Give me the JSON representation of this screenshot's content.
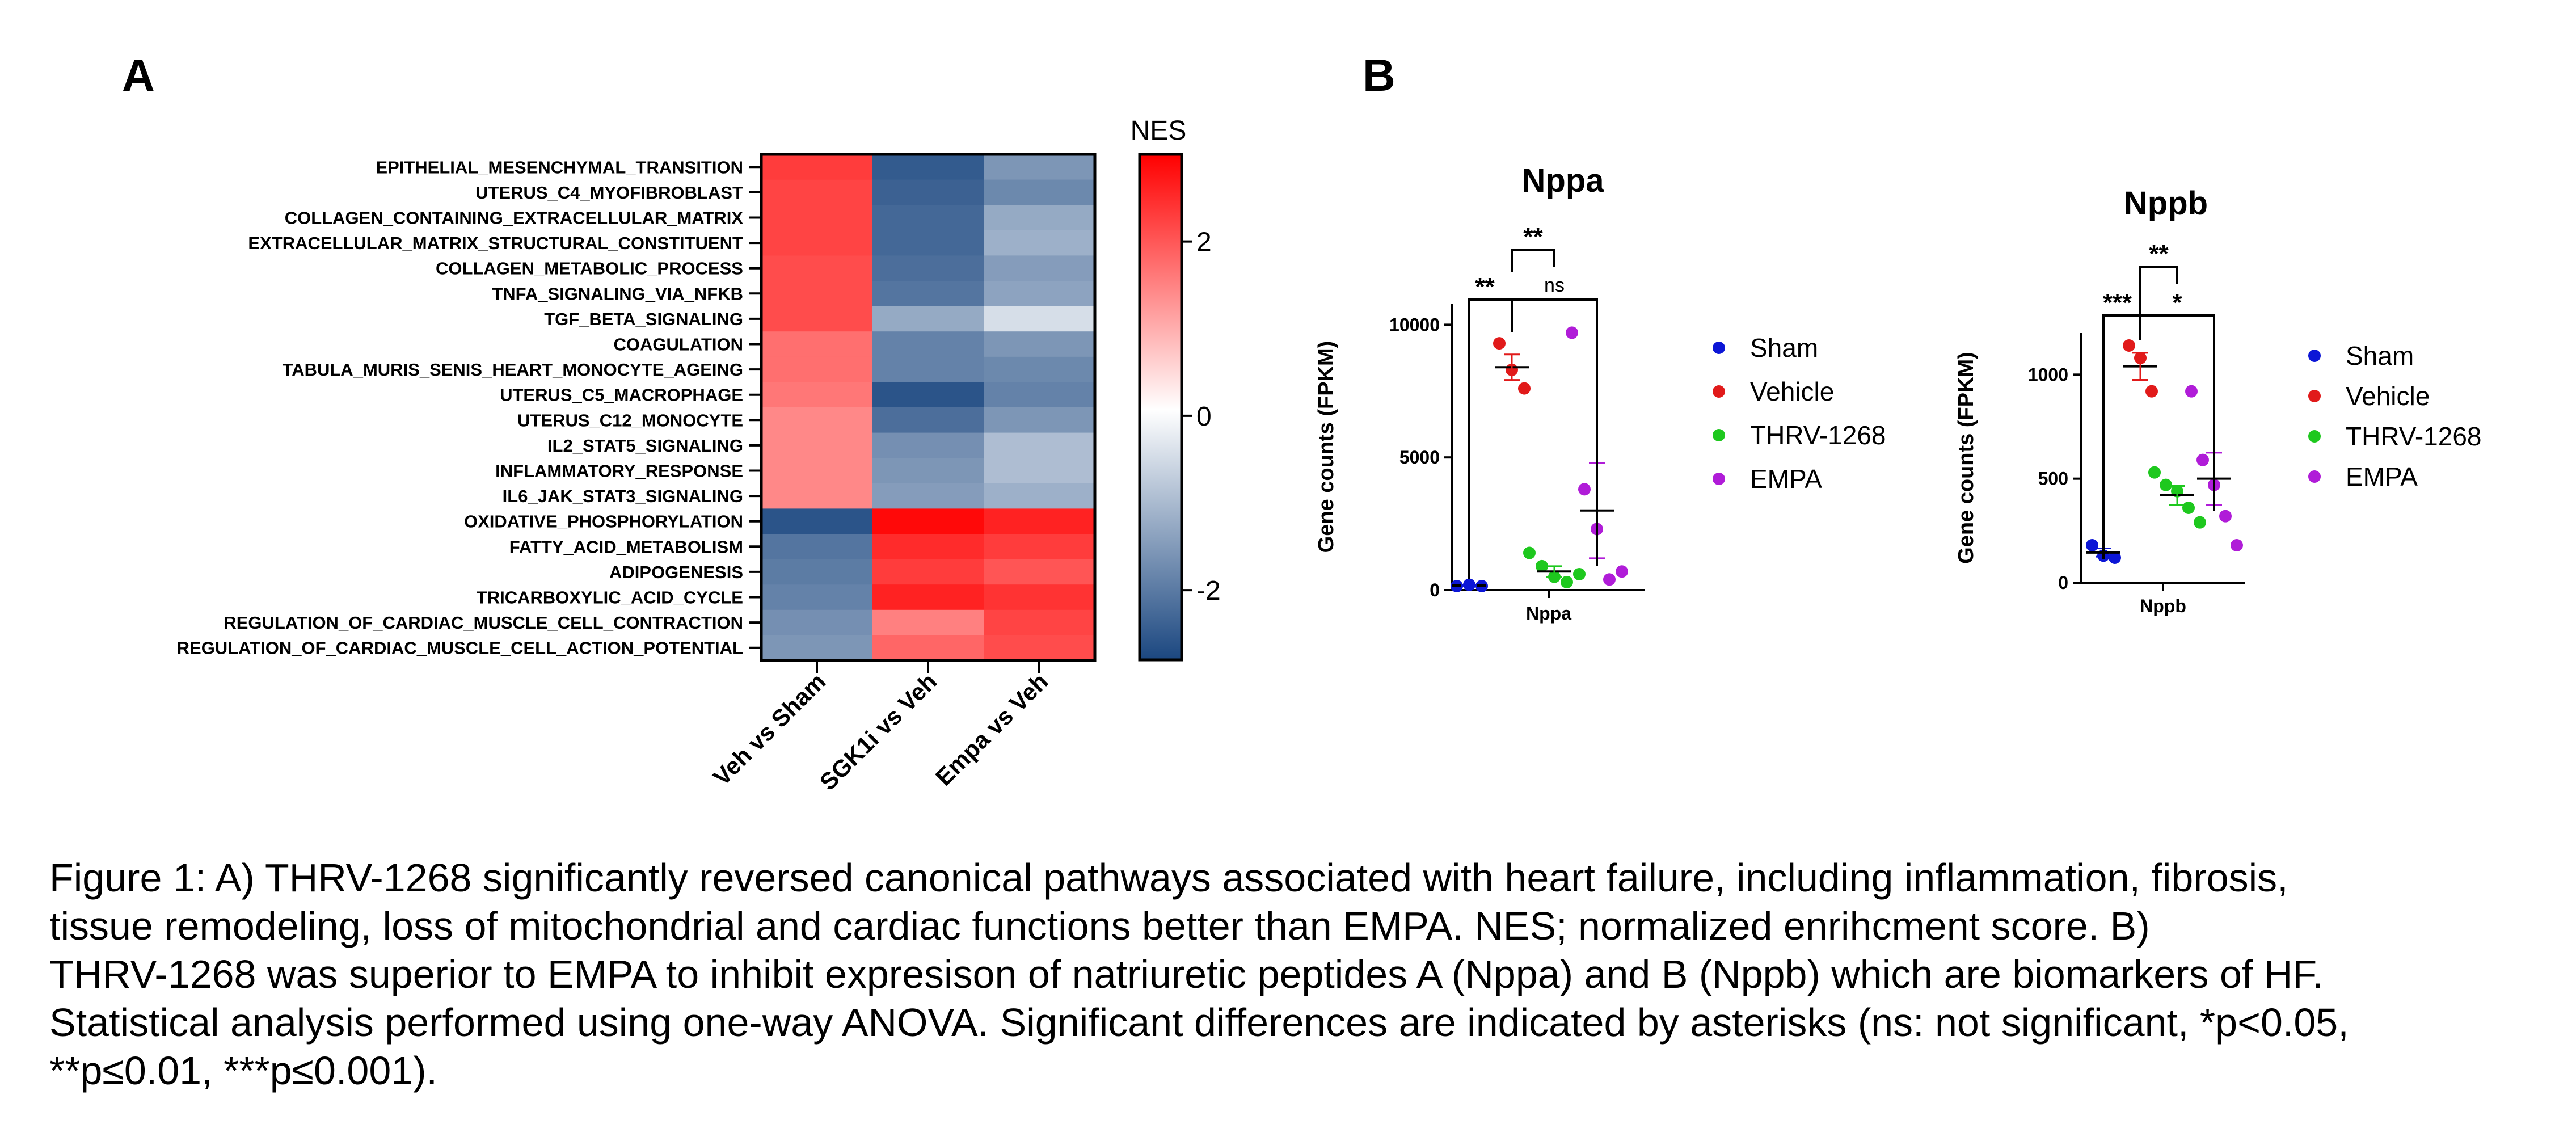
{
  "figure": {
    "panel_a_label": "A",
    "panel_b_label": "B"
  },
  "chart_data": [
    {
      "type": "heatmap",
      "title": "",
      "colorbar_label": "NES",
      "colorbar_ticks": [
        2,
        0,
        -2
      ],
      "zlim": [
        -2.8,
        3.0
      ],
      "colors": {
        "low": "#1b4780",
        "mid": "#ffffff",
        "high": "#ff0000"
      },
      "columns": [
        "Veh vs Sham",
        "SGK1i vs Veh",
        "Empa vs Veh"
      ],
      "rows": [
        "EPITHELIAL_MESENCHYMAL_TRANSITION",
        "UTERUS_C4_MYOFIBROBLAST",
        "COLLAGEN_CONTAINING_EXTRACELLULAR_MATRIX",
        "EXTRACELLULAR_MATRIX_STRUCTURAL_CONSTITUENT",
        "COLLAGEN_METABOLIC_PROCESS",
        "TNFA_SIGNALING_VIA_NFKB",
        "TGF_BETA_SIGNALING",
        "COAGULATION",
        "TABULA_MURIS_SENIS_HEART_MONOCYTE_AGEING",
        "UTERUS_C5_MACROPHAGE",
        "UTERUS_C12_MONOCYTE",
        "IL2_STAT5_SIGNALING",
        "INFLAMMATORY_RESPONSE",
        "IL6_JAK_STAT3_SIGNALING",
        "OXIDATIVE_PHOSPHORYLATION",
        "FATTY_ACID_METABOLISM",
        "ADIPOGENESIS",
        "TRICARBOXYLIC_ACID_CYCLE",
        "REGULATION_OF_CARDIAC_MUSCLE_CELL_CONTRACTION",
        "REGULATION_OF_CARDIAC_MUSCLE_CELL_ACTION_POTENTIAL"
      ],
      "values": [
        [
          2.3,
          -2.5,
          -1.6
        ],
        [
          2.2,
          -2.4,
          -1.8
        ],
        [
          2.2,
          -2.3,
          -1.3
        ],
        [
          2.2,
          -2.3,
          -1.2
        ],
        [
          2.1,
          -2.2,
          -1.5
        ],
        [
          2.1,
          -2.1,
          -1.4
        ],
        [
          2.1,
          -1.3,
          -0.5
        ],
        [
          1.7,
          -1.9,
          -1.6
        ],
        [
          1.7,
          -1.9,
          -1.8
        ],
        [
          1.6,
          -2.6,
          -1.9
        ],
        [
          1.4,
          -2.2,
          -1.6
        ],
        [
          1.4,
          -1.7,
          -1.0
        ],
        [
          1.4,
          -1.6,
          -1.0
        ],
        [
          1.4,
          -1.5,
          -1.2
        ],
        [
          -2.6,
          2.9,
          2.6
        ],
        [
          -2.1,
          2.5,
          2.3
        ],
        [
          -2.0,
          2.3,
          2.0
        ],
        [
          -1.9,
          2.6,
          2.4
        ],
        [
          -1.7,
          1.5,
          2.2
        ],
        [
          -1.6,
          1.8,
          2.1
        ]
      ]
    },
    {
      "type": "scatter",
      "title": "Nppa",
      "xlabel": "Nppa",
      "ylabel": "Gene counts (FPKM)",
      "ylim": [
        0,
        10800
      ],
      "yticks": [
        0,
        5000,
        10000
      ],
      "series": [
        {
          "name": "Sham",
          "color": "#0c16d6",
          "values": [
            150,
            200,
            150
          ],
          "mean": 170,
          "sem": 20
        },
        {
          "name": "Vehicle",
          "color": "#e11a1a",
          "values": [
            9300,
            8300,
            7600
          ],
          "mean": 8400,
          "sem": 480
        },
        {
          "name": "THRV-1268",
          "color": "#1ec81e",
          "values": [
            1400,
            900,
            500,
            300,
            600
          ],
          "mean": 700,
          "sem": 200
        },
        {
          "name": "EMPA",
          "color": "#b01cd8",
          "values": [
            9700,
            3800,
            2300,
            400,
            700
          ],
          "mean": 3000,
          "sem": 1800
        }
      ],
      "comparisons": [
        {
          "from": 0,
          "to": 1,
          "label": "**"
        },
        {
          "from": 1,
          "to": 2,
          "label": "**"
        },
        {
          "from": 1,
          "to": 3,
          "label": "ns"
        }
      ]
    },
    {
      "type": "scatter",
      "title": "Nppb",
      "xlabel": "Nppb",
      "ylabel": "Gene counts (FPKM)",
      "ylim": [
        0,
        1200
      ],
      "yticks": [
        0,
        500,
        1000
      ],
      "series": [
        {
          "name": "Sham",
          "color": "#0c16d6",
          "values": [
            180,
            130,
            120
          ],
          "mean": 145,
          "sem": 20
        },
        {
          "name": "Vehicle",
          "color": "#e11a1a",
          "values": [
            1140,
            1080,
            920
          ],
          "mean": 1040,
          "sem": 65
        },
        {
          "name": "THRV-1268",
          "color": "#1ec81e",
          "values": [
            530,
            470,
            440,
            360,
            290
          ],
          "mean": 420,
          "sem": 45
        },
        {
          "name": "EMPA",
          "color": "#b01cd8",
          "values": [
            920,
            590,
            470,
            320,
            180
          ],
          "mean": 500,
          "sem": 125
        }
      ],
      "comparisons": [
        {
          "from": 0,
          "to": 1,
          "label": "***"
        },
        {
          "from": 1,
          "to": 2,
          "label": "**"
        },
        {
          "from": 1,
          "to": 3,
          "label": "*"
        }
      ]
    }
  ],
  "caption": {
    "lines": [
      "Figure 1: A) THRV-1268 significantly reversed canonical pathways associated with heart failure, including inflammation, fibrosis,",
      "tissue remodeling, loss of mitochondrial and cardiac functions better than EMPA.  NES; normalized enrihcment score. B)",
      "THRV-1268 was superior to EMPA to inhibit expresison of natriuretic peptides A (Nppa) and B (Nppb) which are biomarkers of HF.",
      "Statistical analysis performed using one-way ANOVA. Significant differences are indicated by asterisks (ns: not significant, *p<0.05,",
      "**p≤0.01,  ***p≤0.001)."
    ]
  }
}
